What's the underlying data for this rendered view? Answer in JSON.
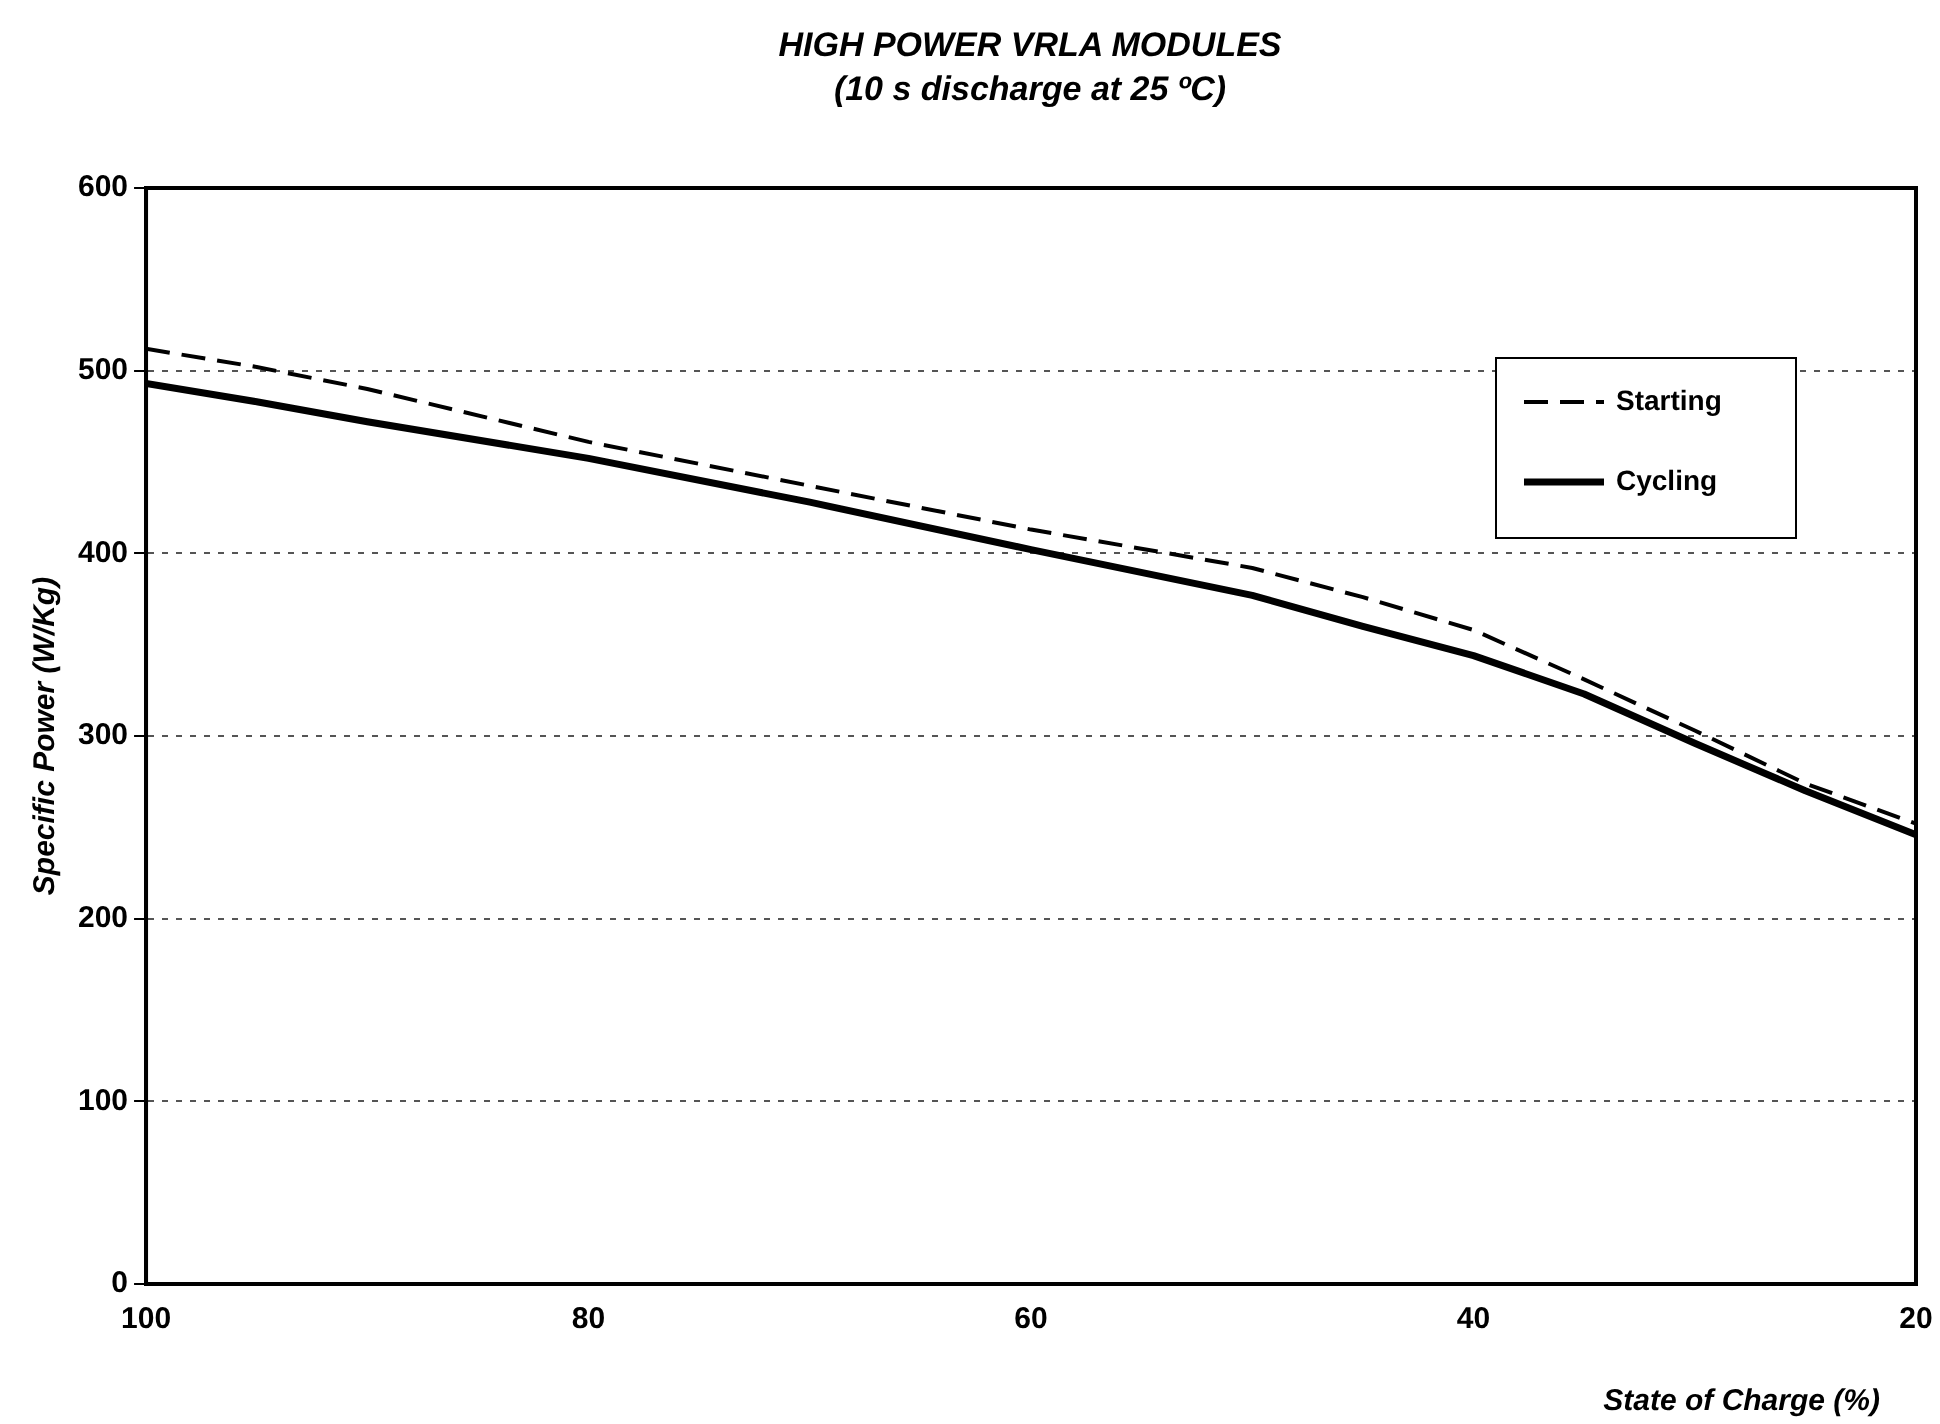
{
  "chart_data": {
    "type": "line",
    "title": "HIGH POWER VRLA MODULES",
    "subtitle": "(10 s discharge at 25 ºC)",
    "xlabel": "State of Charge (%)",
    "ylabel": "Specific Power (W/Kg)",
    "x": [
      100,
      95,
      90,
      80,
      70,
      60,
      50,
      45,
      40,
      35,
      30,
      25,
      20
    ],
    "series": [
      {
        "name": "Starting",
        "color": "#000000",
        "line_style": "dashed",
        "values": [
          512,
          502,
          490,
          461,
          437,
          413,
          392,
          376,
          358,
          331,
          303,
          274,
          252
        ]
      },
      {
        "name": "Cycling",
        "color": "#000000",
        "line_style": "solid",
        "values": [
          493,
          483,
          472,
          452,
          428,
          402,
          377,
          360,
          344,
          323,
          296,
          270,
          246
        ]
      }
    ],
    "xlim": [
      100,
      20
    ],
    "xticks": [
      100,
      80,
      60,
      40,
      20
    ],
    "ylim": [
      0,
      600
    ],
    "yticks": [
      0,
      100,
      200,
      300,
      400,
      500,
      600
    ],
    "grid": "y",
    "legend": "top right",
    "marker": "none"
  }
}
